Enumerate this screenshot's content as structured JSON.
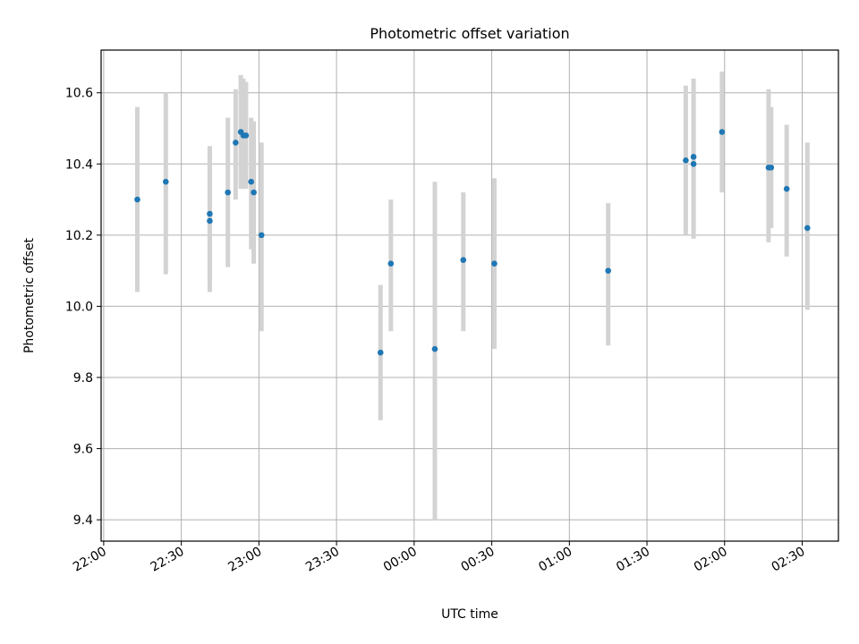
{
  "chart_data": {
    "type": "scatter",
    "title": "Photometric offset variation",
    "xlabel": "UTC time",
    "ylabel": "Photometric offset",
    "grid": true,
    "x_axis": "time",
    "xlim": [
      "21:59",
      "02:44"
    ],
    "ylim": [
      9.34,
      10.72
    ],
    "xticks": [
      "22:00",
      "22:30",
      "23:00",
      "23:30",
      "00:00",
      "00:30",
      "01:00",
      "01:30",
      "02:00",
      "02:30"
    ],
    "yticks": [
      "9.4",
      "9.6",
      "9.8",
      "10.0",
      "10.2",
      "10.4",
      "10.6"
    ],
    "colors": {
      "point": "#1f77b4",
      "errorbar": "#d3d3d3",
      "grid": "#b0b0b0"
    },
    "points": [
      {
        "x": "22:13",
        "y": 10.3,
        "err_low": 10.04,
        "err_high": 10.56
      },
      {
        "x": "22:24",
        "y": 10.35,
        "err_low": 10.09,
        "err_high": 10.6
      },
      {
        "x": "22:41",
        "y": 10.24,
        "err_low": 10.04,
        "err_high": 10.45
      },
      {
        "x": "22:41",
        "y": 10.26,
        "err_low": 10.07,
        "err_high": 10.45
      },
      {
        "x": "22:48",
        "y": 10.32,
        "err_low": 10.11,
        "err_high": 10.53
      },
      {
        "x": "22:51",
        "y": 10.46,
        "err_low": 10.3,
        "err_high": 10.61
      },
      {
        "x": "22:53",
        "y": 10.49,
        "err_low": 10.33,
        "err_high": 10.65
      },
      {
        "x": "22:54",
        "y": 10.48,
        "err_low": 10.33,
        "err_high": 10.64
      },
      {
        "x": "22:55",
        "y": 10.48,
        "err_low": 10.33,
        "err_high": 10.63
      },
      {
        "x": "22:57",
        "y": 10.35,
        "err_low": 10.16,
        "err_high": 10.53
      },
      {
        "x": "22:58",
        "y": 10.32,
        "err_low": 10.12,
        "err_high": 10.52
      },
      {
        "x": "23:01",
        "y": 10.2,
        "err_low": 9.93,
        "err_high": 10.46
      },
      {
        "x": "23:47",
        "y": 9.87,
        "err_low": 9.68,
        "err_high": 10.06
      },
      {
        "x": "23:51",
        "y": 10.12,
        "err_low": 9.93,
        "err_high": 10.3
      },
      {
        "x": "00:08",
        "y": 9.88,
        "err_low": 9.4,
        "err_high": 10.35
      },
      {
        "x": "00:19",
        "y": 10.13,
        "err_low": 9.93,
        "err_high": 10.32
      },
      {
        "x": "00:31",
        "y": 10.12,
        "err_low": 9.88,
        "err_high": 10.36
      },
      {
        "x": "01:15",
        "y": 10.1,
        "err_low": 9.89,
        "err_high": 10.29
      },
      {
        "x": "01:45",
        "y": 10.41,
        "err_low": 10.2,
        "err_high": 10.62
      },
      {
        "x": "01:48",
        "y": 10.4,
        "err_low": 10.19,
        "err_high": 10.62
      },
      {
        "x": "01:48",
        "y": 10.42,
        "err_low": 10.21,
        "err_high": 10.64
      },
      {
        "x": "01:59",
        "y": 10.49,
        "err_low": 10.32,
        "err_high": 10.66
      },
      {
        "x": "02:17",
        "y": 10.39,
        "err_low": 10.18,
        "err_high": 10.61
      },
      {
        "x": "02:18",
        "y": 10.39,
        "err_low": 10.22,
        "err_high": 10.56
      },
      {
        "x": "02:24",
        "y": 10.33,
        "err_low": 10.14,
        "err_high": 10.51
      },
      {
        "x": "02:32",
        "y": 10.22,
        "err_low": 9.99,
        "err_high": 10.46
      }
    ]
  }
}
